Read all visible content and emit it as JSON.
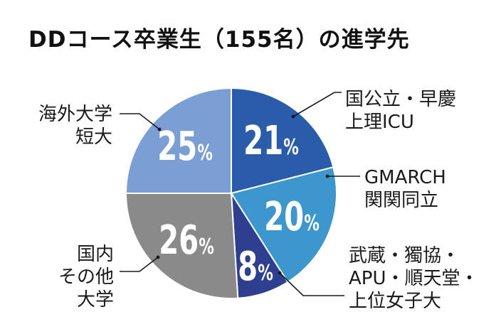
{
  "chart_data": {
    "type": "pie",
    "title": "DDコース卒業生（155名）の進学先",
    "slices": [
      {
        "label_lines": [
          "国公立・早慶",
          "上理ICU"
        ],
        "value": 21,
        "display": "21",
        "unit": "%",
        "color": "#2a5caa"
      },
      {
        "label_lines": [
          "GMARCH",
          "関関同立"
        ],
        "value": 20,
        "display": "20",
        "unit": "%",
        "color": "#3d96cc"
      },
      {
        "label_lines": [
          "武蔵・獨協・",
          "APU・順天堂・",
          "上位女子大"
        ],
        "value": 8,
        "display": "8",
        "unit": "%",
        "color": "#2e3f8f"
      },
      {
        "label_lines": [
          "国内",
          "その他",
          "大学"
        ],
        "value": 26,
        "display": "26",
        "unit": "%",
        "color": "#8a8a8a"
      },
      {
        "label_lines": [
          "海外大学",
          "短大"
        ],
        "value": 25,
        "display": "25",
        "unit": "%",
        "color": "#7b9fd4"
      }
    ]
  }
}
